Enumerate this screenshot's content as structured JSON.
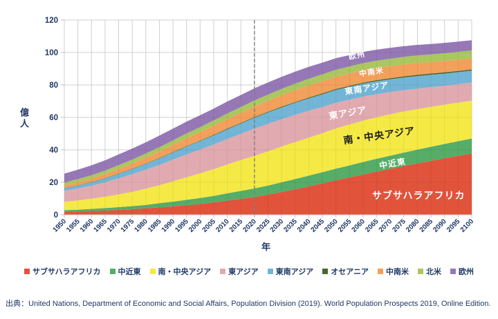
{
  "chart_data": {
    "type": "area",
    "stacked": true,
    "title": "",
    "xlabel": "年",
    "ylabel": "億人",
    "ylim": [
      0,
      120
    ],
    "yticks": [
      0,
      20,
      40,
      60,
      80,
      100,
      120
    ],
    "grid": "both",
    "legend_position": "bottom",
    "reference_line": {
      "x": 2020,
      "style": "dashed",
      "color": "#7f7f7f"
    },
    "x": [
      1950,
      1955,
      1960,
      1965,
      1970,
      1975,
      1980,
      1985,
      1990,
      1995,
      2000,
      2005,
      2010,
      2015,
      2020,
      2025,
      2030,
      2035,
      2040,
      2045,
      2050,
      2055,
      2060,
      2065,
      2070,
      2075,
      2080,
      2085,
      2090,
      2095,
      2100
    ],
    "series": [
      {
        "id": "sub-saharan-africa",
        "name": "サブサハラアフリカ",
        "color": "#e2533c",
        "values": [
          1.8,
          2.0,
          2.3,
          2.6,
          3.0,
          3.4,
          3.9,
          4.5,
          5.1,
          5.9,
          6.7,
          7.6,
          8.7,
          9.8,
          10.9,
          12.4,
          14.0,
          15.7,
          17.5,
          19.3,
          21.2,
          23.0,
          24.8,
          26.6,
          28.3,
          30.0,
          31.6,
          33.2,
          34.8,
          36.3,
          37.8
        ]
      },
      {
        "id": "middle-east",
        "name": "中近東",
        "color": "#55ad68",
        "values": [
          1.0,
          1.1,
          1.3,
          1.5,
          1.7,
          1.9,
          2.2,
          2.6,
          3.0,
          3.3,
          3.6,
          4.0,
          4.5,
          4.9,
          5.3,
          5.6,
          6.0,
          6.3,
          6.6,
          6.9,
          7.2,
          7.4,
          7.7,
          7.9,
          8.1,
          8.3,
          8.5,
          8.7,
          8.8,
          9.0,
          9.2
        ]
      },
      {
        "id": "south-central-asia",
        "name": "南・中央アジア",
        "color": "#f5e945",
        "values": [
          5.2,
          5.7,
          6.3,
          7.0,
          7.8,
          8.8,
          9.9,
          11.1,
          12.5,
          13.9,
          15.2,
          16.5,
          17.8,
          19.0,
          20.1,
          21.1,
          22.0,
          22.8,
          23.4,
          24.0,
          24.8,
          25.2,
          25.5,
          25.6,
          25.5,
          25.3,
          25.0,
          24.6,
          24.2,
          23.8,
          23.3
        ]
      },
      {
        "id": "east-asia",
        "name": "東アジア",
        "color": "#e1aab1",
        "values": [
          6.7,
          7.4,
          8.0,
          8.9,
          9.9,
          10.9,
          11.8,
          12.5,
          13.4,
          14.1,
          14.7,
          15.2,
          15.7,
          16.2,
          16.8,
          16.9,
          16.9,
          16.8,
          16.6,
          16.2,
          15.8,
          15.3,
          14.8,
          14.2,
          13.7,
          13.1,
          12.6,
          12.1,
          11.7,
          11.4,
          11.2
        ]
      },
      {
        "id": "southeast-asia",
        "name": "東南アジア",
        "color": "#72b5d7",
        "values": [
          1.6,
          1.8,
          2.1,
          2.4,
          2.8,
          3.2,
          3.6,
          4.0,
          4.4,
          4.8,
          5.2,
          5.6,
          6.0,
          6.3,
          6.7,
          7.0,
          7.2,
          7.4,
          7.6,
          7.8,
          7.9,
          8.0,
          8.0,
          8.0,
          7.9,
          7.9,
          7.8,
          7.7,
          7.5,
          7.4,
          7.3
        ]
      },
      {
        "id": "oceania",
        "name": "オセアニア",
        "color": "#4a672b",
        "values": [
          0.13,
          0.14,
          0.16,
          0.18,
          0.2,
          0.22,
          0.23,
          0.25,
          0.27,
          0.29,
          0.31,
          0.34,
          0.37,
          0.4,
          0.43,
          0.45,
          0.48,
          0.5,
          0.53,
          0.55,
          0.57,
          0.6,
          0.62,
          0.64,
          0.66,
          0.68,
          0.7,
          0.71,
          0.73,
          0.74,
          0.75
        ]
      },
      {
        "id": "latin-america",
        "name": "中南米",
        "color": "#f2a05c",
        "values": [
          1.7,
          1.9,
          2.2,
          2.5,
          2.9,
          3.2,
          3.6,
          4.0,
          4.4,
          4.8,
          5.2,
          5.6,
          5.9,
          6.2,
          6.5,
          6.8,
          7.1,
          7.3,
          7.5,
          7.6,
          7.6,
          7.6,
          7.6,
          7.5,
          7.5,
          7.4,
          7.3,
          7.1,
          7.0,
          6.9,
          6.8
        ]
      },
      {
        "id": "north-america",
        "name": "北米",
        "color": "#abc760",
        "values": [
          1.7,
          1.9,
          2.0,
          2.1,
          2.3,
          2.4,
          2.5,
          2.7,
          2.8,
          3.0,
          3.1,
          3.3,
          3.4,
          3.6,
          3.7,
          3.8,
          3.9,
          4.0,
          4.1,
          4.2,
          4.3,
          4.3,
          4.4,
          4.5,
          4.5,
          4.6,
          4.7,
          4.7,
          4.8,
          4.9,
          4.9
        ]
      },
      {
        "id": "europe",
        "name": "欧州",
        "color": "#9678b6",
        "values": [
          5.5,
          5.8,
          6.1,
          6.3,
          6.6,
          6.8,
          6.9,
          7.1,
          7.2,
          7.3,
          7.3,
          7.3,
          7.4,
          7.4,
          7.5,
          7.5,
          7.4,
          7.4,
          7.3,
          7.2,
          7.1,
          7.0,
          6.9,
          6.8,
          6.7,
          6.6,
          6.5,
          6.4,
          6.4,
          6.3,
          6.3
        ]
      }
    ],
    "area_labels": {
      "europe": "欧州",
      "latin_america": "中南米",
      "southeast_asia": "東南アジア",
      "east_asia": "東アジア",
      "south_central_asia": "南・中央アジア",
      "middle_east": "中近東",
      "sub_saharan_africa": "サブサハラアフリカ"
    }
  },
  "source": {
    "text": "出典：United Nations, Department of Economic and Social Affairs, Population Division (2019). World Population Prospects 2019, Online Edition."
  }
}
